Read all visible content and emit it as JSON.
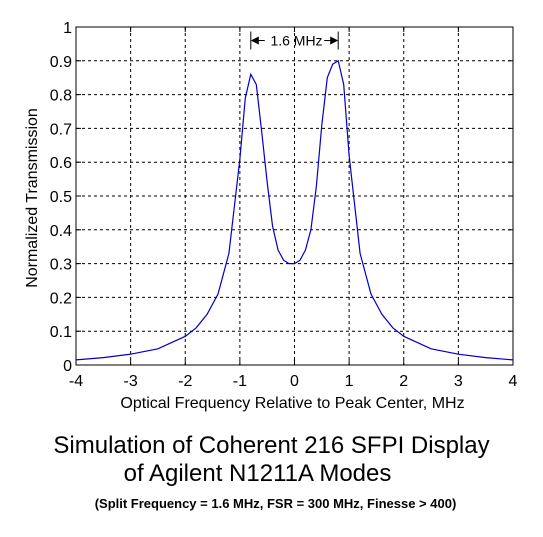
{
  "chart_data": {
    "type": "line",
    "title": "",
    "xlabel": "Optical Frequency Relative to Peak Center, MHz",
    "ylabel": "Normalized Transmission",
    "xlim": [
      -4,
      4
    ],
    "ylim": [
      0,
      1
    ],
    "xticks": [
      "-4",
      "-3",
      "-2",
      "-1",
      "0",
      "1",
      "2",
      "3",
      "4"
    ],
    "yticks": [
      "0",
      "0.1",
      "0.2",
      "0.3",
      "0.4",
      "0.5",
      "0.6",
      "0.7",
      "0.8",
      "0.9",
      "1"
    ],
    "grid": true,
    "line_color": "#0000cc",
    "series": [
      {
        "x": [
          -4.0,
          -3.5,
          -3.0,
          -2.5,
          -2.0,
          -1.8,
          -1.6,
          -1.4,
          -1.2,
          -1.0,
          -0.9,
          -0.8,
          -0.7,
          -0.6,
          -0.5,
          -0.4,
          -0.3,
          -0.2,
          -0.1,
          0.0,
          0.1,
          0.2,
          0.3,
          0.4,
          0.5,
          0.6,
          0.7,
          0.8,
          0.9,
          1.0,
          1.2,
          1.4,
          1.6,
          1.8,
          2.0,
          2.5,
          3.0,
          3.5,
          4.0
        ],
        "values": [
          0.015,
          0.022,
          0.032,
          0.048,
          0.085,
          0.11,
          0.15,
          0.21,
          0.33,
          0.61,
          0.79,
          0.86,
          0.83,
          0.69,
          0.54,
          0.41,
          0.34,
          0.31,
          0.3,
          0.3,
          0.31,
          0.34,
          0.4,
          0.53,
          0.71,
          0.85,
          0.89,
          0.9,
          0.83,
          0.62,
          0.33,
          0.21,
          0.15,
          0.11,
          0.085,
          0.048,
          0.032,
          0.022,
          0.015
        ]
      }
    ],
    "annotation": {
      "text": "1.6 MHz",
      "from_x": -0.8,
      "to_x": 0.8,
      "y": 0.96
    }
  },
  "captions": {
    "line1": "Simulation of Coherent 216 SFPI Display",
    "line2": "of Agilent N1211A Modes",
    "line3": "(Split Frequency = 1.6 MHz, FSR = 300 MHz, Finesse > 400)"
  }
}
